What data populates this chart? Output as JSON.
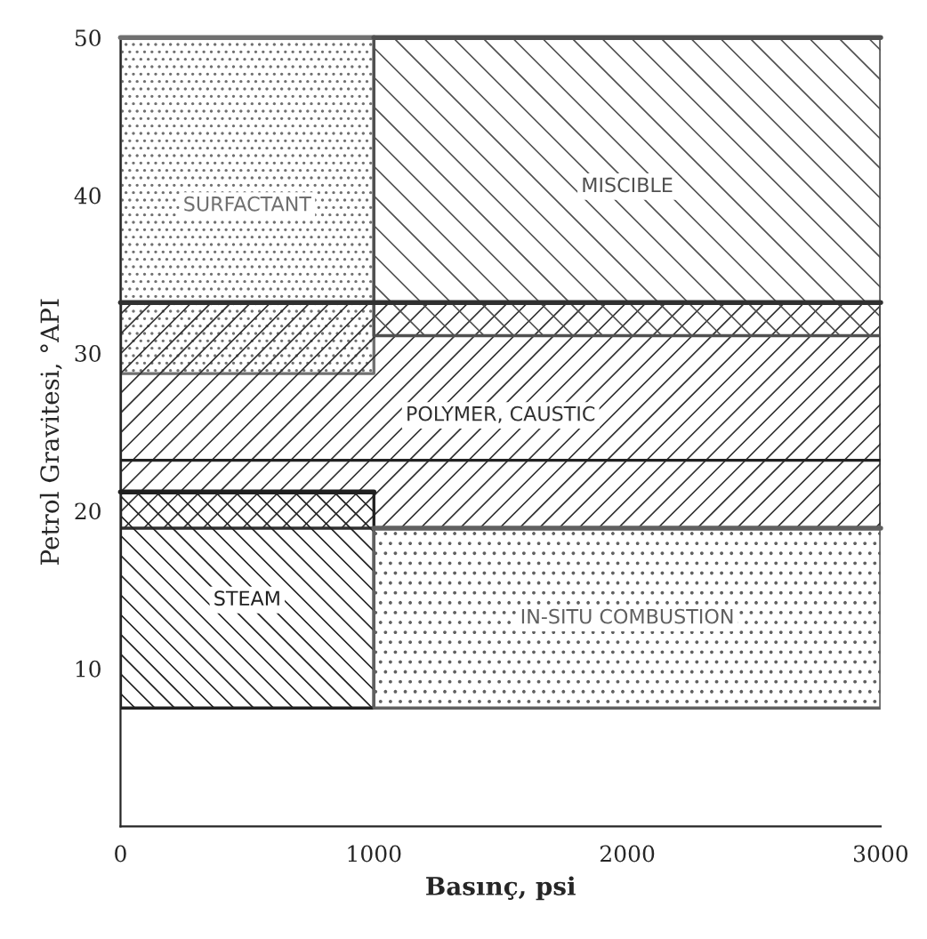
{
  "chart_data": {
    "type": "line",
    "xlabel": "Basınç, psi",
    "ylabel": "Petrol Gravitesi, °API",
    "xlim": [
      0,
      3000
    ],
    "xticks": [
      0,
      1000,
      2000,
      3000
    ],
    "ylim": [
      0,
      50
    ],
    "yticks": [
      10,
      20,
      30,
      40,
      50
    ],
    "legend": false,
    "series": [
      {
        "name": "SURFACTANT",
        "color": "#707070",
        "x": [
          0,
          1000
        ],
        "values": [
          50,
          50
        ],
        "lower": [
          28.7,
          28.7
        ],
        "upper": [
          50,
          50
        ]
      },
      {
        "name": "POLYMER, CAUSTIC",
        "color": "#303030",
        "x": [
          0,
          3000
        ],
        "values": [
          33.2,
          33.2
        ],
        "lower": [
          18.9,
          18.9
        ],
        "upper": [
          33.2,
          33.2
        ]
      },
      {
        "name": "MISCIBLE",
        "color": "#505050",
        "x": [
          1000,
          3000
        ],
        "values": [
          50,
          50
        ],
        "lower": [
          31.1,
          31.1
        ],
        "upper": [
          50,
          50
        ]
      },
      {
        "name": "STEAM",
        "color": "#202020",
        "x": [
          0,
          1000
        ],
        "values": [
          21.2,
          21.2
        ],
        "lower": [
          7.5,
          7.5
        ],
        "upper": [
          21.2,
          21.2
        ]
      },
      {
        "name": "IN-SITU COMBUSTION",
        "color": "#606060",
        "x": [
          1000,
          3000
        ],
        "values": [
          18.9,
          18.9
        ],
        "lower": [
          7.5,
          7.5
        ],
        "upper": [
          18.9,
          18.9
        ]
      }
    ],
    "ref_lines": [
      {
        "axis": "y",
        "value": 23.2,
        "color": "#222222",
        "line_style": "solid"
      }
    ]
  }
}
